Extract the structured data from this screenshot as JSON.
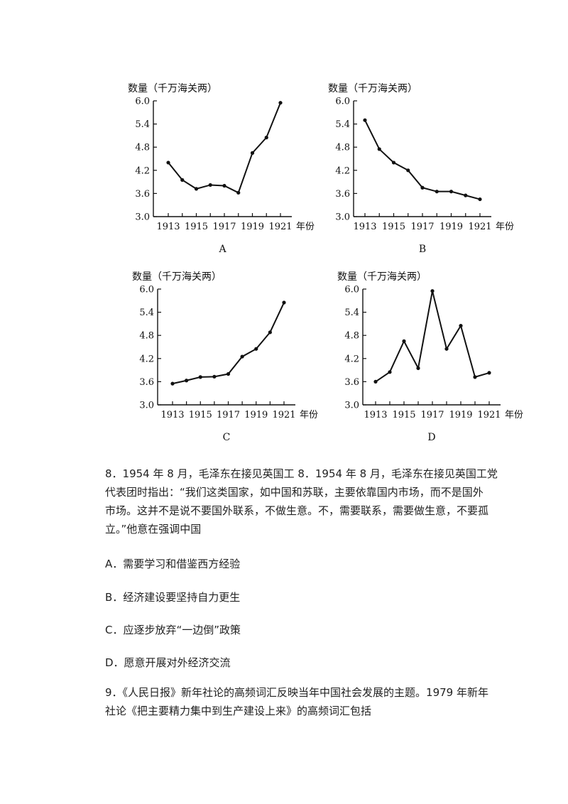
{
  "chart_data": [
    {
      "type": "line",
      "ylabel": "数量（千万海关两）",
      "xlabel": "年份",
      "panel_label": "A",
      "yticks": [
        "3.0",
        "3.6",
        "4.2",
        "4.8",
        "5.4",
        "6.0"
      ],
      "xticks": [
        "1913",
        "1915",
        "1917",
        "1919",
        "1921"
      ],
      "ylim": [
        3.0,
        6.0
      ],
      "x": [
        1913,
        1914,
        1915,
        1916,
        1917,
        1918,
        1919,
        1920,
        1921
      ],
      "values": [
        4.4,
        3.95,
        3.72,
        3.82,
        3.8,
        3.62,
        4.65,
        5.05,
        5.95
      ]
    },
    {
      "type": "line",
      "ylabel": "数量（千万海关两）",
      "xlabel": "年份",
      "panel_label": "B",
      "yticks": [
        "3.0",
        "3.6",
        "4.2",
        "4.8",
        "5.4",
        "6.0"
      ],
      "xticks": [
        "1913",
        "1915",
        "1917",
        "1919",
        "1921"
      ],
      "ylim": [
        3.0,
        6.0
      ],
      "x": [
        1913,
        1914,
        1915,
        1916,
        1917,
        1918,
        1919,
        1920,
        1921
      ],
      "values": [
        5.5,
        4.75,
        4.4,
        4.2,
        3.75,
        3.65,
        3.65,
        3.55,
        3.45
      ]
    },
    {
      "type": "line",
      "ylabel": "数量（千万海关两）",
      "xlabel": "年份",
      "panel_label": "C",
      "yticks": [
        "3.0",
        "3.6",
        "4.2",
        "4.8",
        "5.4",
        "6.0"
      ],
      "xticks": [
        "1913",
        "1915",
        "1917",
        "1919",
        "1921"
      ],
      "ylim": [
        3.0,
        6.0
      ],
      "x": [
        1913,
        1914,
        1915,
        1916,
        1917,
        1918,
        1919,
        1920,
        1921
      ],
      "values": [
        3.55,
        3.63,
        3.72,
        3.73,
        3.8,
        4.25,
        4.45,
        4.88,
        5.65
      ]
    },
    {
      "type": "line",
      "ylabel": "数量（千万海关两）",
      "xlabel": "年份",
      "panel_label": "D",
      "yticks": [
        "3.0",
        "3.6",
        "4.2",
        "4.8",
        "5.4",
        "6.0"
      ],
      "xticks": [
        "1913",
        "1915",
        "1917",
        "1919",
        "1921"
      ],
      "ylim": [
        3.0,
        6.0
      ],
      "x": [
        1913,
        1914,
        1915,
        1916,
        1917,
        1918,
        1919,
        1920,
        1921
      ],
      "values": [
        3.6,
        3.85,
        4.65,
        3.95,
        5.95,
        4.45,
        5.05,
        3.72,
        3.83
      ]
    }
  ],
  "question8": {
    "lines": [
      "8．1954 年 8 月，毛泽东在接见英国工 8．1954 年 8 月，毛泽东在接见英国工党",
      "代表团时指出：“我们这类国家，如中国和苏联，主要依靠国内市场，而不是国外",
      "市场。这并不是说不要国外联系，不做生意。不，需要联系，需要做生意，不要孤",
      "立。”他意在强调中国"
    ],
    "options": [
      "A．需要学习和借鉴西方经验",
      "B．经济建设要坚持自力更生",
      "C．应逐步放弃“一边倒”政策",
      "D．愿意开展对外经济交流"
    ]
  },
  "question9": {
    "lines": [
      "9．《人民日报》新年社论的高频词汇反映当年中国社会发展的主题。1979 年新年",
      "社论《把主要精力集中到生产建设上来》的高频词汇包括"
    ]
  }
}
